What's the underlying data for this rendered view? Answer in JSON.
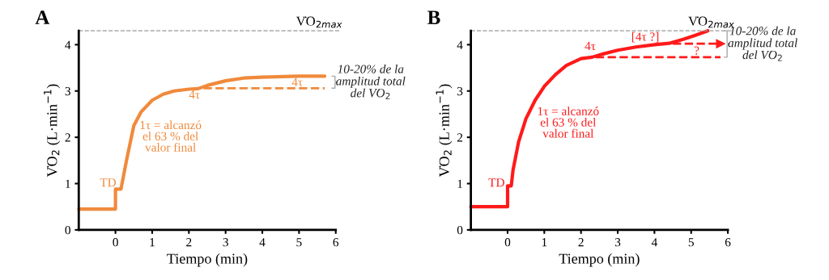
{
  "chart_data": [
    {
      "type": "line",
      "title": "A",
      "xlabel": "Tiempo (min)",
      "ylabel": "V̇O$_{2}$ (L·min$^{−1}$)",
      "xlim": [
        -1,
        6
      ],
      "xticks": [
        0,
        1,
        2,
        3,
        4,
        5,
        6
      ],
      "ylim": [
        0,
        4.3
      ],
      "yticks": [
        0,
        1,
        2,
        3,
        4
      ],
      "grid": false,
      "legend": false,
      "marker": "none",
      "series": [
        {
          "color": "#f08a3c",
          "line_style": "solid",
          "x": [
            -1,
            0,
            0,
            0.15,
            0.3,
            0.5,
            0.7,
            1.0,
            1.3,
            1.6,
            2.0,
            2.25,
            2.5,
            3.0,
            3.5,
            4.0,
            5.0,
            5.7
          ],
          "values": [
            0.45,
            0.45,
            0.88,
            0.88,
            1.5,
            2.25,
            2.55,
            2.8,
            2.93,
            3.0,
            3.04,
            3.05,
            3.12,
            3.22,
            3.28,
            3.3,
            3.32,
            3.32
          ]
        },
        {
          "color": "#f08a3c",
          "line_style": "dashed",
          "x": [
            2.4,
            5.7
          ],
          "values": [
            3.06,
            3.06
          ]
        }
      ],
      "ref_lines": [
        {
          "axis": "y",
          "value": 4.3,
          "label": "V̇O$_{2max}$",
          "color": "#999999",
          "line_style": "dashed"
        }
      ],
      "annotations": [
        "TD",
        "4τ",
        "4τ",
        "1τ = alcanzó\nel 63 % del\nvalor final",
        "10-20% de la\namplitud total\ndel V̇O$_{2}$"
      ]
    },
    {
      "type": "line",
      "title": "B",
      "xlabel": "Tiempo (min)",
      "ylabel": "V̇O$_{2}$ (L·min$^{−1}$)",
      "xlim": [
        -1,
        6
      ],
      "xticks": [
        0,
        1,
        2,
        3,
        4,
        5,
        6
      ],
      "ylim": [
        0,
        4.3
      ],
      "yticks": [
        0,
        1,
        2,
        3,
        4
      ],
      "grid": false,
      "legend": false,
      "marker": "none",
      "series": [
        {
          "color": "#ff1a1a",
          "line_style": "solid",
          "x": [
            -1,
            0,
            0,
            0.1,
            0.15,
            0.3,
            0.5,
            0.75,
            1.0,
            1.3,
            1.6,
            2.0,
            2.3,
            2.6,
            3.0,
            3.5,
            4.0,
            4.4,
            4.8,
            5.1,
            5.45
          ],
          "values": [
            0.5,
            0.5,
            0.95,
            0.95,
            1.3,
            1.9,
            2.4,
            2.8,
            3.1,
            3.35,
            3.55,
            3.7,
            3.73,
            3.8,
            3.88,
            3.95,
            4.0,
            4.03,
            4.12,
            4.2,
            4.3
          ]
        },
        {
          "color": "#ff1a1a",
          "line_style": "dashed",
          "marker": "triangle",
          "x": [
            4.5,
            5.8
          ],
          "values": [
            4.02,
            4.02
          ]
        },
        {
          "color": "#ff1a1a",
          "line_style": "dashed",
          "x": [
            2.4,
            5.8
          ],
          "values": [
            3.73,
            3.73
          ]
        }
      ],
      "ref_lines": [
        {
          "axis": "y",
          "value": 4.3,
          "label": "V̇O$_{2max}$",
          "color": "#999999",
          "line_style": "dashed"
        }
      ],
      "annotations": [
        "TD",
        "4τ",
        "[4τ ?]",
        "?",
        "1τ = alcanzó\nel 63 % del\nvalor final",
        "10-20% de la\namplitud total\ndel V̇O$_{2}$"
      ]
    }
  ]
}
